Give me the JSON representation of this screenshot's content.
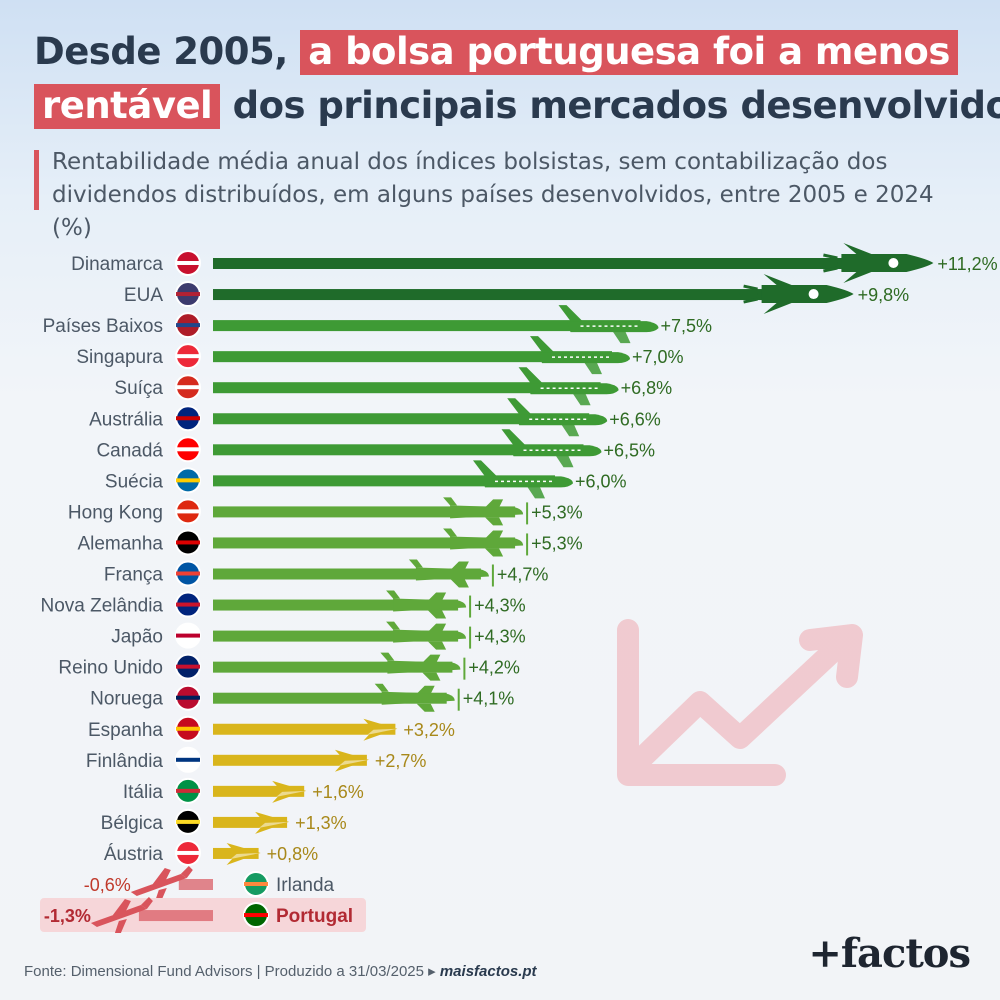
{
  "header": {
    "title_part1": "Desde 2005,",
    "title_highlight1": "a bolsa portuguesa foi a menos",
    "title_highlight2": "rentável",
    "title_part2": "dos principais mercados desenvolvidos",
    "subtitle": "Rentabilidade média anual dos índices bolsistas, sem contabilização dos dividendos distribuídos, em alguns países desenvolvidos, entre 2005 e 2024 (%)"
  },
  "chart_data": {
    "type": "bar",
    "orientation": "horizontal",
    "unit": "%",
    "categories": [
      "Dinamarca",
      "EUA",
      "Países Baixos",
      "Singapura",
      "Suíça",
      "Austrália",
      "Canadá",
      "Suécia",
      "Hong Kong",
      "Alemanha",
      "França",
      "Nova Zelândia",
      "Japão",
      "Reino Unido",
      "Noruega",
      "Espanha",
      "Finlândia",
      "Itália",
      "Bélgica",
      "Áustria",
      "Irlanda",
      "Portugal"
    ],
    "values": [
      11.2,
      9.8,
      7.5,
      7.0,
      6.8,
      6.6,
      6.5,
      6.0,
      5.3,
      5.3,
      4.7,
      4.3,
      4.3,
      4.2,
      4.1,
      3.2,
      2.7,
      1.6,
      1.3,
      0.8,
      -0.6,
      -1.3
    ],
    "labels": [
      "+11,2%",
      "+9,8%",
      "+7,5%",
      "+7,0%",
      "+6,8%",
      "+6,6%",
      "+6,5%",
      "+6,0%",
      "+5,3%",
      "+5,3%",
      "+4,7%",
      "+4,3%",
      "+4,3%",
      "+4,2%",
      "+4,1%",
      "+3,2%",
      "+2,7%",
      "+1,6%",
      "+1,3%",
      "+0,8%",
      "-0,6%",
      "-1,3%"
    ],
    "icons": [
      "rocket-icon",
      "rocket-icon",
      "airliner-icon",
      "airliner-icon",
      "airliner-icon",
      "airliner-icon",
      "airliner-icon",
      "airliner-icon",
      "propeller-plane-icon",
      "propeller-plane-icon",
      "propeller-plane-icon",
      "propeller-plane-icon",
      "propeller-plane-icon",
      "propeller-plane-icon",
      "propeller-plane-icon",
      "paper-plane-icon",
      "paper-plane-icon",
      "paper-plane-icon",
      "paper-plane-icon",
      "paper-plane-icon",
      "crashing-jet-icon",
      "crashing-jet-icon"
    ],
    "highlight": "Portugal",
    "colors": {
      "rocket": "#1f6b2a",
      "airliner": "#3e9a35",
      "propeller": "#5fa83a",
      "paper": "#d9b51c",
      "negative": "#d9545c",
      "highlight_bg": "#f6d6d9"
    }
  },
  "footer": {
    "source": "Fonte: Dimensional Fund Advisors | Produzido a 31/03/2025 ▸",
    "site": "maisfactos.pt",
    "brand": "+factos"
  }
}
